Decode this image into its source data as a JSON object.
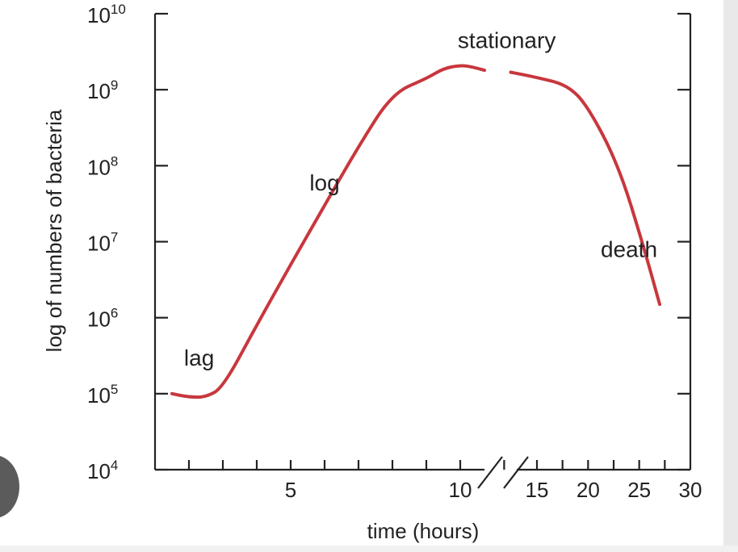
{
  "chart_data": {
    "type": "line",
    "xlabel": "time (hours)",
    "ylabel": "log of numbers of bacteria",
    "x_scale": "broken",
    "x_break_between": [
      10,
      15
    ],
    "y_scale": "log",
    "ylim": [
      10000,
      10000000000
    ],
    "y_ticks": [
      {
        "base": "10",
        "exp": "4"
      },
      {
        "base": "10",
        "exp": "5"
      },
      {
        "base": "10",
        "exp": "6"
      },
      {
        "base": "10",
        "exp": "7"
      },
      {
        "base": "10",
        "exp": "8"
      },
      {
        "base": "10",
        "exp": "9"
      },
      {
        "base": "10",
        "exp": "10"
      }
    ],
    "x_ticks_first": [
      "5",
      "10"
    ],
    "x_ticks_second": [
      "15",
      "20",
      "25",
      "30"
    ],
    "grid": false,
    "series": [
      {
        "color": "#c8373d",
        "segments": [
          {
            "x": [
              1.5,
              2.0,
              2.5,
              3.0,
              4.0,
              5.0,
              6.0,
              7.0,
              8.0,
              9.0,
              9.5,
              10.0,
              10.5,
              11.0
            ],
            "y": [
              100000,
              90000,
              90000,
              120000,
              800000,
              5000000,
              30000000,
              180000000,
              900000000,
              1400000000,
              1900000000,
              2100000000,
              2000000000,
              1800000000
            ]
          },
          {
            "x": [
              13.0,
              15.0,
              18.0,
              20.0,
              23.0,
              25.5,
              27.0
            ],
            "y": [
              1700000000,
              1450000000,
              1150000000,
              600000000,
              100000000,
              8000000,
              1500000
            ]
          }
        ]
      }
    ],
    "annotations": [
      {
        "text": "lag",
        "x": 2.3,
        "y": 300000
      },
      {
        "text": "log",
        "x": 6.0,
        "y": 60000000
      },
      {
        "text": "stationary",
        "x": 12.7,
        "y": 4500000000
      },
      {
        "text": "death",
        "x": 24.0,
        "y": 8000000
      }
    ]
  }
}
